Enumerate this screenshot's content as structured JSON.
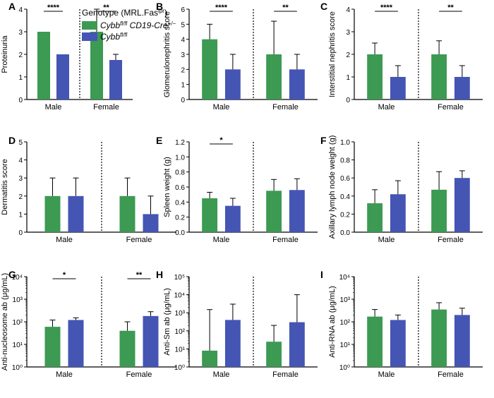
{
  "colors": {
    "green": "#3c9a52",
    "blue": "#4555b4",
    "axis": "#000000"
  },
  "legend": {
    "title": "Genotype (MRL.Fas",
    "title_sup": "lpr",
    "title_end": ")",
    "items": [
      {
        "label": "Cybb",
        "sup": "fl/fl",
        "label2": " CD19-Cre",
        "sup2": "+/−",
        "color": "green"
      },
      {
        "label": "Cybb",
        "sup": "fl/fl",
        "label2": "",
        "sup2": "",
        "color": "blue"
      }
    ]
  },
  "chart_data": [
    {
      "panel": "A",
      "type": "bar",
      "ylabel": "Proteinuria",
      "ylim": [
        0,
        4
      ],
      "yticks": [
        "0",
        "1",
        "2",
        "3",
        "4"
      ],
      "categories": [
        "Male",
        "Female"
      ],
      "series": [
        {
          "values": [
            3,
            3
          ],
          "error": [
            0,
            1
          ]
        },
        {
          "values": [
            2,
            1.75
          ],
          "error": [
            0,
            0.25
          ]
        }
      ],
      "sig": [
        {
          "group": 0,
          "text": "****"
        },
        {
          "group": 1,
          "text": "**"
        }
      ]
    },
    {
      "panel": "B",
      "type": "bar",
      "ylabel": "Glomerulonephritis score",
      "ylim": [
        0,
        6
      ],
      "yticks": [
        "0",
        "1",
        "2",
        "3",
        "4",
        "5",
        "6"
      ],
      "categories": [
        "Male",
        "Female"
      ],
      "series": [
        {
          "values": [
            4,
            3
          ],
          "error": [
            1,
            2.2
          ]
        },
        {
          "values": [
            2,
            2
          ],
          "error": [
            1,
            1
          ]
        }
      ],
      "sig": [
        {
          "group": 0,
          "text": "****"
        },
        {
          "group": 1,
          "text": "**"
        }
      ]
    },
    {
      "panel": "C",
      "type": "bar",
      "ylabel": "Interstitial nephritis score",
      "ylim": [
        0,
        4
      ],
      "yticks": [
        "0",
        "1",
        "2",
        "3",
        "4"
      ],
      "categories": [
        "Male",
        "Female"
      ],
      "series": [
        {
          "values": [
            2,
            2
          ],
          "error": [
            0.5,
            0.6
          ]
        },
        {
          "values": [
            1,
            1
          ],
          "error": [
            0.5,
            0.5
          ]
        }
      ],
      "sig": [
        {
          "group": 0,
          "text": "****"
        },
        {
          "group": 1,
          "text": "**"
        }
      ]
    },
    {
      "panel": "D",
      "type": "bar",
      "ylabel": "Dermatitis score",
      "ylim": [
        0,
        5
      ],
      "yticks": [
        "0",
        "1",
        "2",
        "3",
        "4",
        "5"
      ],
      "categories": [
        "Male",
        "Female"
      ],
      "series": [
        {
          "values": [
            2,
            2
          ],
          "error": [
            1,
            1
          ]
        },
        {
          "values": [
            2,
            1
          ],
          "error": [
            1,
            1
          ]
        }
      ],
      "sig": []
    },
    {
      "panel": "E",
      "type": "bar",
      "ylabel": "Spleen weight (g)",
      "ylim": [
        0,
        1.2
      ],
      "yticks": [
        "0.0",
        "0.2",
        "0.4",
        "0.6",
        "0.8",
        "1.0",
        "1.2"
      ],
      "categories": [
        "Male",
        "Female"
      ],
      "series": [
        {
          "values": [
            0.45,
            0.55
          ],
          "error": [
            0.08,
            0.15
          ]
        },
        {
          "values": [
            0.35,
            0.56
          ],
          "error": [
            0.1,
            0.15
          ]
        }
      ],
      "sig": [
        {
          "group": 0,
          "text": "*"
        }
      ]
    },
    {
      "panel": "F",
      "type": "bar",
      "ylabel": "Axillary lymph node weight (g)",
      "ylim": [
        0,
        1.0
      ],
      "yticks": [
        "0.0",
        "0.2",
        "0.4",
        "0.6",
        "0.8",
        "1.0"
      ],
      "categories": [
        "Male",
        "Female"
      ],
      "series": [
        {
          "values": [
            0.32,
            0.47
          ],
          "error": [
            0.15,
            0.2
          ]
        },
        {
          "values": [
            0.42,
            0.6
          ],
          "error": [
            0.15,
            0.08
          ]
        }
      ],
      "sig": []
    },
    {
      "panel": "G",
      "type": "bar",
      "log": true,
      "ylabel": "Anti-nucleosome ab (μg/mL)",
      "ylim_exp": [
        0,
        4
      ],
      "yticks": [
        "10⁰",
        "10¹",
        "10²",
        "10³",
        "10⁴"
      ],
      "categories": [
        "Male",
        "Female"
      ],
      "series": [
        {
          "values": [
            60,
            40
          ],
          "error_hi": [
            120,
            100
          ]
        },
        {
          "values": [
            120,
            180
          ],
          "error_hi": [
            150,
            280
          ]
        }
      ],
      "sig": [
        {
          "group": 0,
          "text": "*"
        },
        {
          "group": 1,
          "text": "**"
        }
      ]
    },
    {
      "panel": "H",
      "type": "bar",
      "log": true,
      "ylabel": "Anti-Sm ab (μg/mL)",
      "ylim_exp": [
        0,
        5
      ],
      "yticks": [
        "10⁰",
        "10¹",
        "10²",
        "10³",
        "10⁴",
        "10⁵"
      ],
      "categories": [
        "Male",
        "Female"
      ],
      "series": [
        {
          "values": [
            8,
            25
          ],
          "error_hi": [
            1500,
            200
          ]
        },
        {
          "values": [
            400,
            300
          ],
          "error_hi": [
            3000,
            10000
          ]
        }
      ],
      "sig": []
    },
    {
      "panel": "I",
      "type": "bar",
      "log": true,
      "ylabel": "Anti-RNA ab (μg/mL)",
      "ylim_exp": [
        0,
        4
      ],
      "yticks": [
        "10⁰",
        "10¹",
        "10²",
        "10³",
        "10⁴"
      ],
      "categories": [
        "Male",
        "Female"
      ],
      "series": [
        {
          "values": [
            170,
            350
          ],
          "error_hi": [
            350,
            700
          ]
        },
        {
          "values": [
            120,
            200
          ],
          "error_hi": [
            200,
            400
          ]
        }
      ],
      "sig": []
    }
  ]
}
